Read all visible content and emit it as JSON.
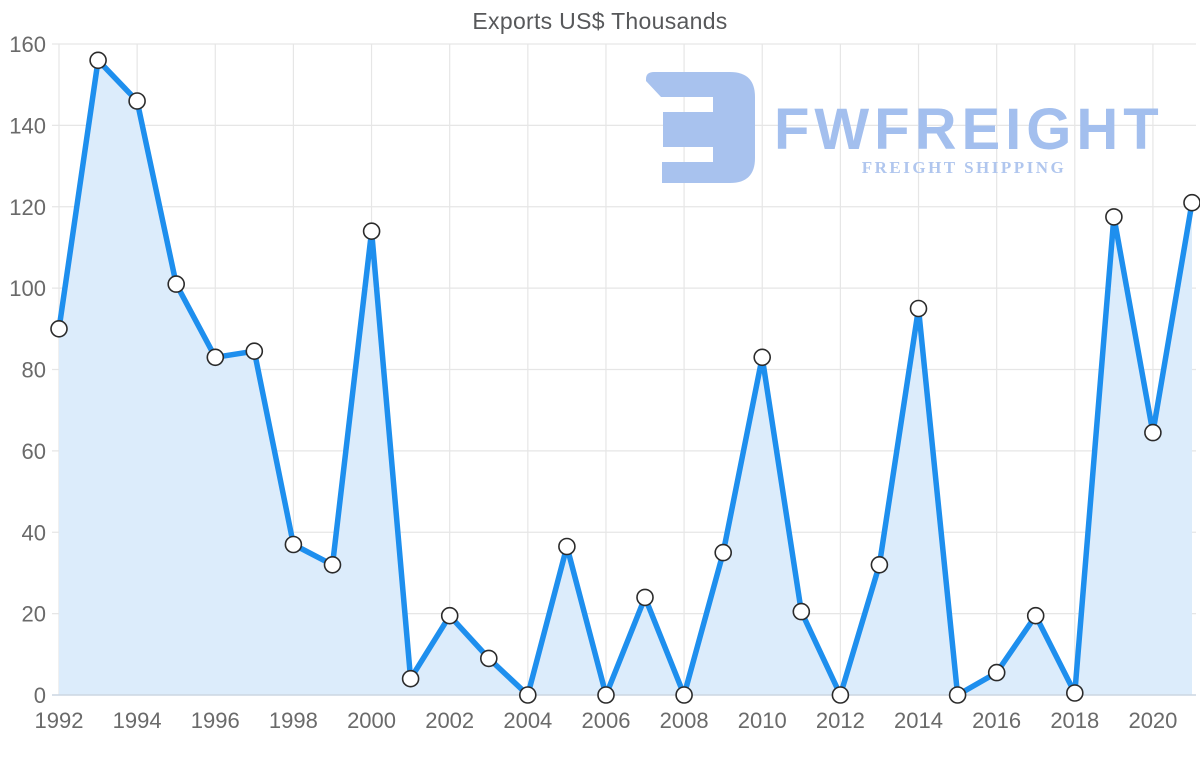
{
  "chart_data": {
    "type": "area",
    "title": "Exports US$ Thousands",
    "x": [
      1992,
      1993,
      1994,
      1995,
      1996,
      1997,
      1998,
      1999,
      2000,
      2001,
      2002,
      2003,
      2004,
      2005,
      2006,
      2007,
      2008,
      2009,
      2010,
      2011,
      2012,
      2013,
      2014,
      2015,
      2016,
      2017,
      2018,
      2019,
      2020,
      2021
    ],
    "values": [
      90,
      156,
      146,
      101,
      83,
      84.5,
      37,
      32,
      114,
      4,
      19.5,
      9,
      0,
      36.5,
      0,
      24,
      0,
      35,
      83,
      20.5,
      0,
      32,
      95,
      0,
      5.5,
      19.5,
      0.5,
      117.5,
      64.5,
      121
    ],
    "series_name": "Exports US$ Thousands",
    "xlabel": "",
    "ylabel": "",
    "ylim": [
      0,
      160
    ],
    "ytick_step": 20,
    "ytick_labels": [
      "0",
      "20",
      "40",
      "60",
      "80",
      "100",
      "120",
      "140",
      "160"
    ],
    "xtick_labels": [
      "1992",
      "1994",
      "1996",
      "1998",
      "2000",
      "2002",
      "2004",
      "2006",
      "2008",
      "2010",
      "2012",
      "2014",
      "2016",
      "2018",
      "2020"
    ],
    "grid": "on",
    "legend": "none",
    "colors": {
      "line": "#1e8fee",
      "fill": "#dcecfb",
      "grid": "#e6e6e6",
      "axis_line": "#ccd6e2",
      "tick_label": "#6a6a6a",
      "title": "#57585a",
      "marker_fill": "#ffffff",
      "marker_stroke": "#2b2b2b"
    }
  },
  "watermark": {
    "brand": "FWFREIGHT",
    "tagline": "FREIGHT SHIPPING",
    "color": "#a3bfee"
  }
}
